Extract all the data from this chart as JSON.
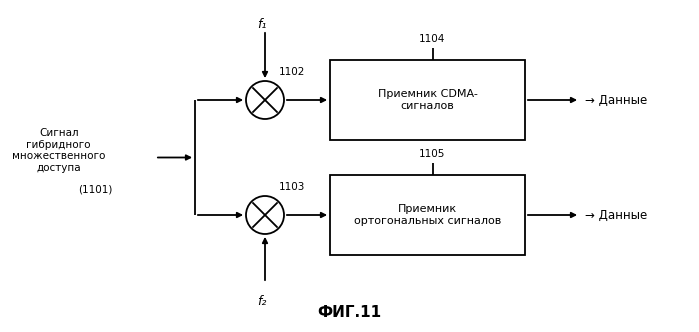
{
  "bg_color": "#ffffff",
  "fig_width": 6.99,
  "fig_height": 3.32,
  "dpi": 100,
  "title": "ФИГ.11",
  "box1_label": "Приемник CDMA-\nсигналов",
  "box2_label": "Приемник\nортогональных сигналов",
  "box1_tag": "1104",
  "box2_tag": "1105",
  "circle1_tag": "1102",
  "circle2_tag": "1103",
  "f1_label": "f₁",
  "f2_label": "f₂",
  "output_label": "→ Данные",
  "input_label": "Сигнал\nгибридного\nмножественного\nдоступа",
  "input_sub": "(1101)",
  "text_color": "#000000",
  "line_color": "#000000"
}
